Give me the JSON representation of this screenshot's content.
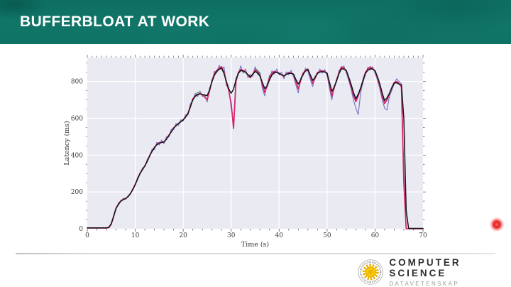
{
  "header": {
    "title": "BUFFERBLOAT AT WORK"
  },
  "footer": {
    "org": "COMPUTER SCIENCE",
    "org_sub": "DATAVETENSKAP",
    "seal_icon": "sun-seal-icon",
    "seal_sun_color": "#f2c200"
  },
  "pointer": {
    "laser_dot_color": "#e01e1e"
  },
  "theme": {
    "header_teal": "#117568",
    "background": "#ffffff",
    "divider": "#d9d9d9"
  },
  "chart_data": {
    "type": "line",
    "title": "",
    "xlabel": "Time (s)",
    "ylabel": "Latency (ms)",
    "xlim": [
      0,
      70
    ],
    "ylim": [
      0,
      930
    ],
    "xticks": [
      0,
      10,
      20,
      30,
      40,
      50,
      60,
      70
    ],
    "yticks": [
      0,
      200,
      400,
      600,
      800
    ],
    "grid": true,
    "legend": "none",
    "plot_bg": "#eaeaf2",
    "grid_color": "#ffffff",
    "x_step": 0.5,
    "series": [
      {
        "name": "median (green, mostly hidden)",
        "color": "#2f9e44",
        "width": 1.2,
        "values": [
          4,
          4,
          4,
          4,
          4,
          4,
          4,
          4,
          4,
          6,
          25,
          70,
          112,
          135,
          152,
          160,
          165,
          175,
          192,
          215,
          242,
          272,
          302,
          322,
          342,
          368,
          398,
          422,
          442,
          458,
          468,
          470,
          472,
          488,
          508,
          528,
          548,
          560,
          572,
          582,
          592,
          608,
          628,
          665,
          705,
          722,
          740,
          735,
          728,
          715,
          700,
          750,
          805,
          848,
          860,
          872,
          880,
          850,
          795,
          750,
          680,
          560,
          800,
          850,
          865,
          860,
          852,
          835,
          820,
          840,
          870,
          862,
          842,
          785,
          740,
          775,
          832,
          845,
          855,
          852,
          845,
          835,
          828,
          840,
          848,
          846,
          840,
          800,
          760,
          815,
          845,
          860,
          868,
          830,
          790,
          818,
          848,
          855,
          858,
          854,
          845,
          785,
          720,
          765,
          810,
          850,
          880,
          872,
          860,
          820,
          775,
          725,
          690,
          722,
          762,
          808,
          850,
          868,
          880,
          870,
          858,
          820,
          775,
          720,
          680,
          700,
          730,
          768,
          795,
          800,
          790,
          770,
          250,
          0,
          0,
          0,
          0,
          0,
          0,
          0,
          0
        ]
      },
      {
        "name": "raw samples (blue)",
        "color": "#7173c2",
        "width": 1.1,
        "values": [
          4,
          5,
          3,
          5,
          4,
          4,
          5,
          3,
          4,
          6,
          22,
          65,
          108,
          140,
          148,
          165,
          160,
          180,
          188,
          220,
          238,
          280,
          298,
          330,
          338,
          378,
          390,
          432,
          430,
          470,
          455,
          482,
          462,
          500,
          498,
          540,
          538,
          572,
          562,
          592,
          585,
          620,
          618,
          680,
          695,
          735,
          718,
          748,
          718,
          728,
          688,
          765,
          795,
          855,
          848,
          888,
          868,
          880,
          778,
          765,
          655,
          575,
          820,
          838,
          885,
          845,
          868,
          820,
          838,
          828,
          880,
          838,
          850,
          762,
          722,
          790,
          812,
          858,
          840,
          868,
          835,
          850,
          815,
          852,
          836,
          860,
          825,
          782,
          738,
          818,
          832,
          872,
          855,
          812,
          772,
          830,
          838,
          868,
          845,
          865,
          832,
          762,
          700,
          778,
          798,
          862,
          868,
          885,
          848,
          805,
          760,
          700,
          655,
          620,
          742,
          795,
          838,
          878,
          862,
          880,
          845,
          808,
          760,
          700,
          655,
          645,
          720,
          752,
          788,
          815,
          800,
          788,
          300,
          0,
          0,
          0,
          0,
          0,
          0,
          0,
          0
        ]
      },
      {
        "name": "smoothed (pink)",
        "color": "#d6246e",
        "width": 1.7,
        "values": [
          4,
          4,
          4,
          4,
          4,
          4,
          4,
          4,
          4,
          6,
          25,
          70,
          112,
          135,
          152,
          160,
          165,
          175,
          192,
          215,
          242,
          272,
          302,
          322,
          342,
          368,
          398,
          422,
          442,
          458,
          468,
          470,
          472,
          488,
          508,
          528,
          548,
          560,
          572,
          582,
          592,
          608,
          628,
          665,
          705,
          722,
          728,
          735,
          728,
          715,
          700,
          750,
          805,
          840,
          860,
          872,
          880,
          850,
          795,
          750,
          680,
          545,
          800,
          850,
          865,
          860,
          852,
          835,
          820,
          840,
          862,
          852,
          832,
          785,
          740,
          775,
          825,
          845,
          855,
          852,
          845,
          835,
          828,
          840,
          848,
          846,
          840,
          800,
          760,
          805,
          845,
          860,
          868,
          830,
          790,
          818,
          848,
          855,
          858,
          854,
          845,
          785,
          720,
          765,
          810,
          850,
          880,
          872,
          860,
          820,
          775,
          725,
          690,
          722,
          762,
          808,
          850,
          868,
          880,
          870,
          858,
          820,
          775,
          720,
          680,
          700,
          730,
          768,
          795,
          800,
          790,
          770,
          250,
          0,
          0,
          0,
          0,
          0,
          0,
          0,
          0
        ]
      },
      {
        "name": "trend (black)",
        "color": "#151515",
        "width": 1.5,
        "values": [
          5,
          5,
          5,
          5,
          5,
          5,
          5,
          5,
          5,
          8,
          28,
          68,
          110,
          132,
          150,
          158,
          164,
          174,
          191,
          213,
          240,
          270,
          300,
          321,
          341,
          366,
          396,
          420,
          441,
          456,
          465,
          468,
          471,
          486,
          506,
          526,
          546,
          559,
          571,
          581,
          591,
          606,
          626,
          662,
          701,
          719,
          729,
          732,
          729,
          726,
          723,
          754,
          800,
          834,
          854,
          866,
          872,
          844,
          799,
          760,
          736,
          758,
          809,
          844,
          859,
          857,
          849,
          837,
          826,
          839,
          854,
          847,
          829,
          795,
          762,
          775,
          810,
          835,
          849,
          849,
          844,
          837,
          830,
          838,
          844,
          844,
          839,
          811,
          786,
          811,
          839,
          857,
          864,
          836,
          806,
          822,
          844,
          851,
          854,
          851,
          844,
          796,
          746,
          771,
          806,
          844,
          869,
          867,
          859,
          824,
          786,
          741,
          706,
          731,
          766,
          806,
          844,
          861,
          869,
          867,
          859,
          826,
          786,
          736,
          696,
          711,
          736,
          766,
          791,
          793,
          786,
          781,
          600,
          100,
          2,
          2,
          2,
          2,
          2,
          2,
          2
        ]
      }
    ]
  }
}
